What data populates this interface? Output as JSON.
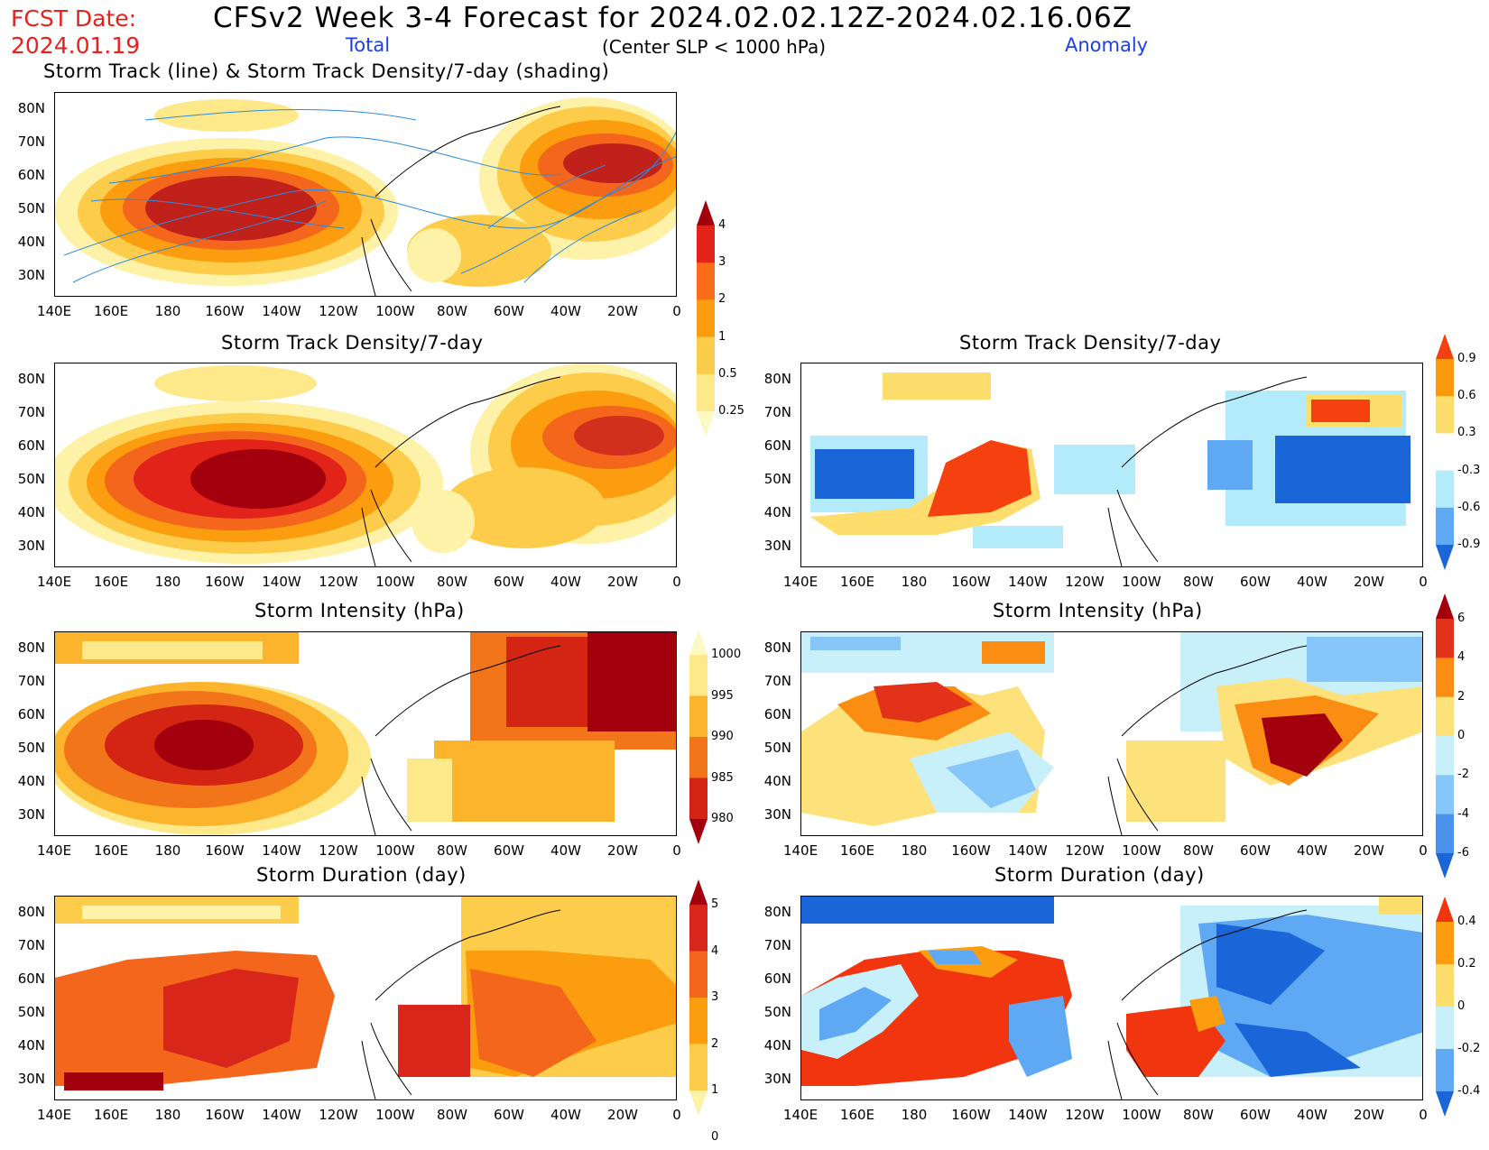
{
  "header": {
    "fcst_date_label": "FCST Date:",
    "fcst_date": "2024.01.19",
    "title": "CFSv2 Week 3-4 Forecast for 2024.02.02.12Z-2024.02.16.06Z",
    "total_label": "Total",
    "criteria": "(Center SLP < 1000 hPa)",
    "anomaly_label": "Anomaly",
    "top_panel_title": "Storm Track (line) & Storm Track Density/7-day (shading)"
  },
  "axes": {
    "lat_ticks": [
      "80N",
      "70N",
      "60N",
      "50N",
      "40N",
      "30N"
    ],
    "lon_ticks": [
      "140E",
      "160E",
      "180",
      "160W",
      "140W",
      "120W",
      "100W",
      "80W",
      "60W",
      "40W",
      "20W",
      "0"
    ]
  },
  "panels": [
    {
      "id": "track-total",
      "title": ""
    },
    {
      "id": "density-total",
      "title": "Storm Track Density/7-day"
    },
    {
      "id": "density-anom",
      "title": "Storm Track Density/7-day"
    },
    {
      "id": "intensity-total",
      "title": "Storm Intensity (hPa)"
    },
    {
      "id": "intensity-anom",
      "title": "Storm Intensity (hPa)"
    },
    {
      "id": "duration-total",
      "title": "Storm Duration (day)"
    },
    {
      "id": "duration-anom",
      "title": "Storm Duration (day)"
    }
  ],
  "colorbars": {
    "density_total": {
      "labels": [
        "4",
        "3",
        "2",
        "1",
        "0.5",
        "0.25"
      ],
      "colors": [
        "#a3000d",
        "#e2231a",
        "#fa6c19",
        "#fb9d0e",
        "#fccc4a",
        "#fde98a",
        "#fdf9c2"
      ]
    },
    "density_anom": {
      "labels": [
        "0.9",
        "0.6",
        "0.3",
        "-0.3",
        "-0.6",
        "-0.9"
      ],
      "colors": [
        "#f5410f",
        "#fc9a0e",
        "#fdde6c",
        "#ffffff",
        "#b3ebfb",
        "#5ea8f4",
        "#1a66d8"
      ]
    },
    "intensity_total": {
      "labels": [
        "1000",
        "995",
        "990",
        "985",
        "980"
      ],
      "colors": [
        "#fdf9c2",
        "#fde98a",
        "#fcb42c",
        "#f3751a",
        "#d32414",
        "#a3000d"
      ]
    },
    "intensity_anom": {
      "labels": [
        "6",
        "4",
        "2",
        "0",
        "-2",
        "-4",
        "-6"
      ],
      "colors": [
        "#a3000d",
        "#e2331a",
        "#fb8e12",
        "#fde17a",
        "#c8f0fb",
        "#86c6f8",
        "#4b92ec",
        "#1a66d8"
      ]
    },
    "duration_total": {
      "labels": [
        "5",
        "4",
        "3",
        "2",
        "1",
        "0"
      ],
      "colors": [
        "#a3000d",
        "#d9261a",
        "#f3661c",
        "#fb9d0e",
        "#fccc4a",
        "#fdf2a8"
      ]
    },
    "duration_anom": {
      "labels": [
        "0.4",
        "0.2",
        "0",
        "-0.2",
        "-0.4"
      ],
      "colors": [
        "#f0350f",
        "#fb9d0e",
        "#fdde6c",
        "#c8f0fb",
        "#5ea8f4",
        "#1a66d8"
      ]
    }
  }
}
